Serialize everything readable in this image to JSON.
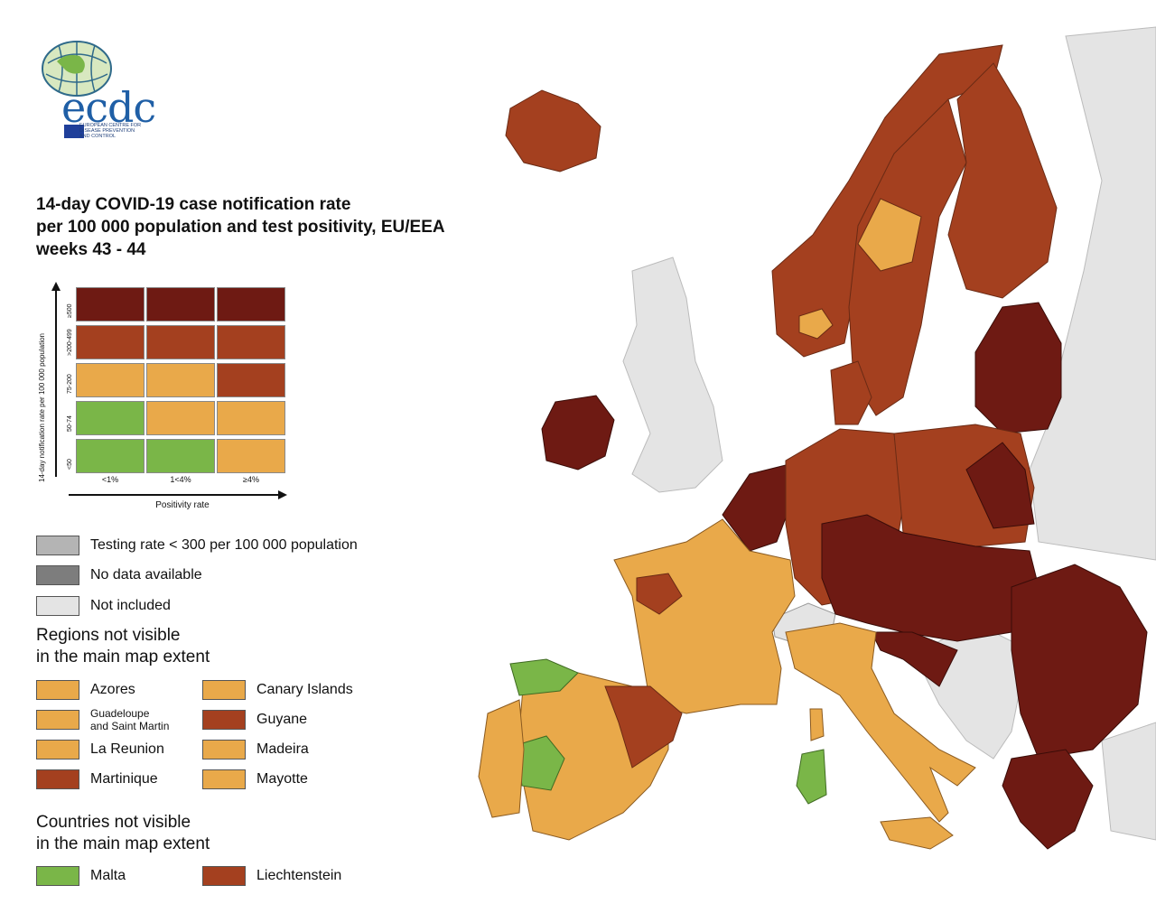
{
  "colors": {
    "dark_red": "#6e1a13",
    "red_brown": "#a4401f",
    "orange": "#e9a94a",
    "green": "#7ab648",
    "grey_testing": "#b4b4b4",
    "grey_nodata": "#7d7d7d",
    "grey_not_included": "#e4e4e4",
    "sea": "#ffffff"
  },
  "logo": {
    "text": "ecdc",
    "subtitle": "EUROPEAN CENTRE FOR\nDISEASE PREVENTION\nAND CONTROL"
  },
  "title": {
    "line1": "14-day COVID-19 case notification rate",
    "line2": "per 100 000 population and test positivity, EU/EEA",
    "line3": "weeks 43 - 44"
  },
  "matrix": {
    "y_axis_label": "14-day notification rate per 100 000 population",
    "x_axis_label": "Positivity rate",
    "row_labels": [
      "≥500",
      ">200-499",
      "75-200",
      "50-74",
      "<50"
    ],
    "col_labels": [
      "<1%",
      "1<4%",
      "≥4%"
    ],
    "cells": [
      [
        "dark_red",
        "dark_red",
        "dark_red"
      ],
      [
        "red_brown",
        "red_brown",
        "red_brown"
      ],
      [
        "orange",
        "orange",
        "red_brown"
      ],
      [
        "green",
        "orange",
        "orange"
      ],
      [
        "green",
        "green",
        "orange"
      ]
    ]
  },
  "legend": {
    "testing": "Testing rate < 300 per 100 000 population",
    "no_data": "No data available",
    "not_included": "Not included"
  },
  "regions_section": {
    "heading": "Regions not visible\nin the main map extent",
    "items": [
      {
        "label": "Azores",
        "color": "orange"
      },
      {
        "label": "Canary Islands",
        "color": "orange"
      },
      {
        "label": "Guadeloupe\nand Saint Martin",
        "color": "orange"
      },
      {
        "label": "Guyane",
        "color": "red_brown"
      },
      {
        "label": "La Reunion",
        "color": "orange"
      },
      {
        "label": "Madeira",
        "color": "orange"
      },
      {
        "label": "Martinique",
        "color": "red_brown"
      },
      {
        "label": "Mayotte",
        "color": "orange"
      }
    ]
  },
  "countries_section": {
    "heading": "Countries not visible\nin the main map extent",
    "items": [
      {
        "label": "Malta",
        "color": "green"
      },
      {
        "label": "Liechtenstein",
        "color": "red_brown"
      }
    ]
  },
  "map_regions": [
    {
      "name": "Iceland",
      "color": "red_brown"
    },
    {
      "name": "Ireland",
      "color": "dark_red"
    },
    {
      "name": "Great Britain",
      "color": "grey_not_included"
    },
    {
      "name": "Norway",
      "color": "red_brown"
    },
    {
      "name": "Sweden",
      "color": "red_brown"
    },
    {
      "name": "Finland",
      "color": "red_brown"
    },
    {
      "name": "Estonia/Latvia/Lithuania",
      "color": "dark_red"
    },
    {
      "name": "Denmark",
      "color": "red_brown"
    },
    {
      "name": "Netherlands/Belgium",
      "color": "dark_red"
    },
    {
      "name": "Germany",
      "color": "red_brown"
    },
    {
      "name": "Poland",
      "color": "red_brown"
    },
    {
      "name": "France",
      "color": "orange"
    },
    {
      "name": "Spain",
      "color": "orange"
    },
    {
      "name": "Portugal",
      "color": "orange"
    },
    {
      "name": "Italy",
      "color": "orange"
    },
    {
      "name": "Central Europe",
      "color": "dark_red"
    },
    {
      "name": "Romania/Bulgaria",
      "color": "dark_red"
    },
    {
      "name": "Greece",
      "color": "dark_red"
    },
    {
      "name": "Switzerland",
      "color": "grey_not_included"
    },
    {
      "name": "Balkans",
      "color": "grey_not_included"
    },
    {
      "name": "Sardinia",
      "color": "green"
    }
  ]
}
